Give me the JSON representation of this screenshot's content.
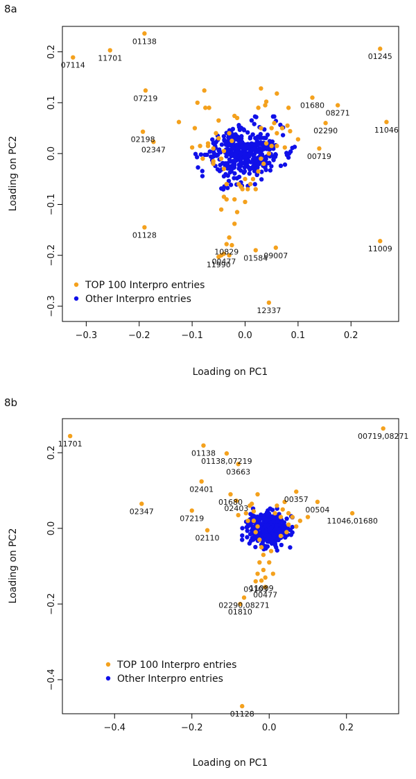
{
  "chart_data": [
    {
      "panel": "8a",
      "type": "scatter",
      "xlabel": "Loading on PC1",
      "ylabel": "Loading on PC2",
      "xlim": [
        -0.345,
        0.29
      ],
      "ylim": [
        -0.33,
        0.25
      ],
      "xticks": [
        -0.3,
        -0.2,
        -0.1,
        0.0,
        0.1,
        0.2
      ],
      "xtick_labels": [
        "−0.3",
        "−0.2",
        "−0.1",
        "0.0",
        "0.1",
        "0.2"
      ],
      "yticks": [
        -0.3,
        -0.2,
        -0.1,
        0.0,
        0.1,
        0.2
      ],
      "ytick_labels": [
        "−0.3",
        "−0.2",
        "−0.1",
        "0.0",
        "0.1",
        "0.2"
      ],
      "legend": {
        "placement": "bottom-left",
        "entries": [
          {
            "label": "TOP 100 Interpro entries",
            "color": "#f4a11d"
          },
          {
            "label": "Other Interpro entries",
            "color": "#1010e8"
          }
        ]
      },
      "series": [
        {
          "name": "TOP 100 Interpro entries",
          "color": "#f4a11d",
          "points": [
            {
              "x": -0.325,
              "y": 0.189,
              "label": "07114"
            },
            {
              "x": -0.255,
              "y": 0.203,
              "label": "11701"
            },
            {
              "x": -0.19,
              "y": 0.236,
              "label": "01138"
            },
            {
              "x": -0.188,
              "y": 0.124,
              "label": "07219"
            },
            {
              "x": -0.193,
              "y": 0.043,
              "label": "02198"
            },
            {
              "x": -0.173,
              "y": 0.023,
              "label": "02347"
            },
            {
              "x": -0.19,
              "y": -0.145,
              "label": "01128"
            },
            {
              "x": 0.255,
              "y": 0.206,
              "label": "01245"
            },
            {
              "x": 0.127,
              "y": 0.11,
              "label": "01680"
            },
            {
              "x": 0.175,
              "y": 0.095,
              "label": "08271"
            },
            {
              "x": 0.267,
              "y": 0.062,
              "label": "11046"
            },
            {
              "x": 0.152,
              "y": 0.06,
              "label": "02290"
            },
            {
              "x": 0.14,
              "y": 0.01,
              "label": "00719"
            },
            {
              "x": 0.255,
              "y": -0.172,
              "label": "11009"
            },
            {
              "x": -0.035,
              "y": -0.178,
              "label": "10829"
            },
            {
              "x": -0.04,
              "y": -0.197,
              "label": "00477"
            },
            {
              "x": -0.05,
              "y": -0.203,
              "label": "11990"
            },
            {
              "x": 0.02,
              "y": -0.19,
              "label": "01584"
            },
            {
              "x": 0.058,
              "y": -0.185,
              "label": "09007"
            },
            {
              "x": 0.045,
              "y": -0.293,
              "label": "12337"
            },
            {
              "x": -0.125,
              "y": 0.062
            },
            {
              "x": -0.095,
              "y": 0.05
            },
            {
              "x": -0.09,
              "y": 0.1
            },
            {
              "x": -0.077,
              "y": 0.124
            },
            {
              "x": -0.075,
              "y": 0.09
            },
            {
              "x": -0.068,
              "y": 0.09
            },
            {
              "x": -0.055,
              "y": 0.04
            },
            {
              "x": -0.05,
              "y": 0.03
            },
            {
              "x": -0.05,
              "y": 0.065
            },
            {
              "x": -0.03,
              "y": 0.04
            },
            {
              "x": -0.04,
              "y": 0.005
            },
            {
              "x": -0.06,
              "y": 0.01
            },
            {
              "x": -0.1,
              "y": 0.012
            },
            {
              "x": -0.085,
              "y": 0.015
            },
            {
              "x": -0.08,
              "y": -0.01
            },
            {
              "x": -0.07,
              "y": 0.015
            },
            {
              "x": -0.06,
              "y": -0.02
            },
            {
              "x": -0.045,
              "y": -0.01
            },
            {
              "x": -0.04,
              "y": -0.03
            },
            {
              "x": -0.035,
              "y": -0.06
            },
            {
              "x": -0.025,
              "y": 0.025
            },
            {
              "x": -0.02,
              "y": 0.074
            },
            {
              "x": -0.015,
              "y": 0.07
            },
            {
              "x": -0.012,
              "y": -0.06
            },
            {
              "x": -0.008,
              "y": -0.065
            },
            {
              "x": -0.005,
              "y": -0.07
            },
            {
              "x": 0.0,
              "y": -0.05
            },
            {
              "x": -0.02,
              "y": -0.09
            },
            {
              "x": -0.035,
              "y": -0.09
            },
            {
              "x": -0.04,
              "y": -0.085
            },
            {
              "x": -0.045,
              "y": -0.11
            },
            {
              "x": -0.015,
              "y": -0.115
            },
            {
              "x": -0.02,
              "y": -0.138
            },
            {
              "x": -0.03,
              "y": -0.165
            },
            {
              "x": -0.025,
              "y": -0.18
            },
            {
              "x": -0.03,
              "y": -0.2
            },
            {
              "x": -0.045,
              "y": -0.2
            },
            {
              "x": 0.0,
              "y": -0.095
            },
            {
              "x": 0.005,
              "y": -0.07
            },
            {
              "x": 0.03,
              "y": 0.128
            },
            {
              "x": 0.025,
              "y": 0.09
            },
            {
              "x": 0.038,
              "y": 0.095
            },
            {
              "x": 0.04,
              "y": 0.102
            },
            {
              "x": 0.055,
              "y": 0.06
            },
            {
              "x": 0.06,
              "y": 0.118
            },
            {
              "x": 0.03,
              "y": 0.05
            },
            {
              "x": 0.05,
              "y": 0.05
            },
            {
              "x": 0.06,
              "y": 0.04
            },
            {
              "x": 0.07,
              "y": 0.05
            },
            {
              "x": 0.08,
              "y": 0.055
            },
            {
              "x": 0.082,
              "y": 0.09
            },
            {
              "x": 0.085,
              "y": 0.044
            },
            {
              "x": 0.1,
              "y": 0.028
            },
            {
              "x": 0.04,
              "y": 0.02
            },
            {
              "x": 0.05,
              "y": 0.015
            },
            {
              "x": 0.06,
              "y": 0.015
            },
            {
              "x": 0.075,
              "y": 0.012
            },
            {
              "x": 0.045,
              "y": 0.0
            },
            {
              "x": 0.03,
              "y": -0.01
            },
            {
              "x": 0.035,
              "y": -0.02
            },
            {
              "x": 0.025,
              "y": -0.035
            },
            {
              "x": 0.015,
              "y": -0.05
            },
            {
              "x": 0.01,
              "y": -0.06
            },
            {
              "x": 0.02,
              "y": -0.07
            },
            {
              "x": -0.06,
              "y": -0.015
            },
            {
              "x": -0.07,
              "y": 0.02
            }
          ]
        },
        {
          "name": "Other Interpro entries",
          "color": "#1010e8",
          "cluster": {
            "center": [
              0.0,
              0.0
            ],
            "spread": [
              0.036,
              0.028
            ],
            "count": 380,
            "seed": 11
          }
        }
      ]
    },
    {
      "panel": "8b",
      "type": "scatter",
      "xlabel": "Loading on PC1",
      "ylabel": "Loading on PC2",
      "xlim": [
        -0.535,
        0.335
      ],
      "ylim": [
        -0.49,
        0.29
      ],
      "xticks": [
        -0.4,
        -0.2,
        0.0,
        0.2
      ],
      "xtick_labels": [
        "−0.4",
        "−0.2",
        "0.0",
        "0.2"
      ],
      "yticks": [
        -0.4,
        -0.2,
        0.0,
        0.2
      ],
      "ytick_labels": [
        "−0.4",
        "−0.2",
        "0.0",
        "0.2"
      ],
      "legend": {
        "placement": "bottom-left",
        "entries": [
          {
            "label": "TOP 100 Interpro entries",
            "color": "#f4a11d"
          },
          {
            "label": "Other Interpro entries",
            "color": "#1010e8"
          }
        ]
      },
      "series": [
        {
          "name": "TOP 100 Interpro entries",
          "color": "#f4a11d",
          "points": [
            {
              "x": -0.515,
              "y": 0.244,
              "label": "11701"
            },
            {
              "x": 0.295,
              "y": 0.264,
              "label": "00719,08271"
            },
            {
              "x": -0.17,
              "y": 0.219,
              "label": "01138"
            },
            {
              "x": -0.11,
              "y": 0.198,
              "label": "01138,07219"
            },
            {
              "x": -0.08,
              "y": 0.17,
              "label": "03663"
            },
            {
              "x": -0.175,
              "y": 0.124,
              "label": "02401"
            },
            {
              "x": -0.1,
              "y": 0.09,
              "label": "01680"
            },
            {
              "x": -0.085,
              "y": 0.073,
              "label": "02403"
            },
            {
              "x": -0.33,
              "y": 0.065,
              "label": "02347"
            },
            {
              "x": -0.2,
              "y": 0.047,
              "label": "07219"
            },
            {
              "x": -0.16,
              "y": -0.005,
              "label": "02110"
            },
            {
              "x": 0.07,
              "y": 0.097,
              "label": "00357"
            },
            {
              "x": 0.125,
              "y": 0.07,
              "label": "00504"
            },
            {
              "x": 0.215,
              "y": 0.04,
              "label": "11046,01680"
            },
            {
              "x": -0.02,
              "y": -0.138,
              "label": "11009"
            },
            {
              "x": -0.035,
              "y": -0.14,
              "label": "09103"
            },
            {
              "x": -0.01,
              "y": -0.155,
              "label": "00477"
            },
            {
              "x": -0.065,
              "y": -0.183,
              "label": "02290,08271"
            },
            {
              "x": -0.075,
              "y": -0.2,
              "label": "01810"
            },
            {
              "x": -0.07,
              "y": -0.47,
              "label": "01128"
            },
            {
              "x": -0.06,
              "y": 0.04
            },
            {
              "x": -0.05,
              "y": 0.06
            },
            {
              "x": -0.04,
              "y": 0.045
            },
            {
              "x": -0.03,
              "y": 0.09
            },
            {
              "x": -0.08,
              "y": 0.035
            },
            {
              "x": -0.04,
              "y": 0.02
            },
            {
              "x": -0.03,
              "y": 0.005
            },
            {
              "x": -0.035,
              "y": -0.01
            },
            {
              "x": -0.025,
              "y": -0.03
            },
            {
              "x": -0.02,
              "y": -0.05
            },
            {
              "x": -0.015,
              "y": -0.07
            },
            {
              "x": -0.025,
              "y": -0.09
            },
            {
              "x": -0.015,
              "y": -0.11
            },
            {
              "x": -0.03,
              "y": -0.12
            },
            {
              "x": -0.01,
              "y": -0.13
            },
            {
              "x": 0.0,
              "y": -0.09
            },
            {
              "x": 0.005,
              "y": -0.06
            },
            {
              "x": 0.01,
              "y": -0.12
            },
            {
              "x": 0.02,
              "y": 0.06
            },
            {
              "x": 0.035,
              "y": 0.05
            },
            {
              "x": 0.05,
              "y": 0.04
            },
            {
              "x": 0.06,
              "y": 0.03
            },
            {
              "x": 0.08,
              "y": 0.02
            },
            {
              "x": 0.1,
              "y": 0.03
            },
            {
              "x": 0.04,
              "y": 0.07
            },
            {
              "x": 0.03,
              "y": 0.03
            },
            {
              "x": 0.05,
              "y": 0.01
            },
            {
              "x": 0.045,
              "y": -0.01
            },
            {
              "x": 0.03,
              "y": -0.02
            },
            {
              "x": -0.045,
              "y": 0.065
            },
            {
              "x": -0.055,
              "y": 0.02
            },
            {
              "x": 0.015,
              "y": 0.04
            },
            {
              "x": 0.07,
              "y": 0.005
            }
          ]
        },
        {
          "name": "Other Interpro entries",
          "color": "#1010e8",
          "cluster": {
            "center": [
              -0.005,
              -0.005
            ],
            "spread": [
              0.025,
              0.022
            ],
            "count": 380,
            "seed": 29
          }
        }
      ]
    }
  ]
}
